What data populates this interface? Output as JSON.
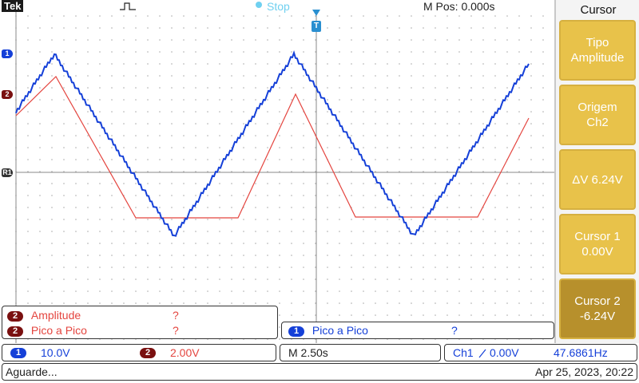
{
  "top": {
    "brand": "Tek",
    "acq_state": "Stop",
    "m_pos": "M Pos: 0.000s"
  },
  "side_menu": {
    "title": "Cursor",
    "buttons": [
      {
        "label": "Tipo\nAmplitude"
      },
      {
        "label": "Origem\nCh2"
      },
      {
        "label": "ΔV 6.24V"
      },
      {
        "label": "Cursor 1\n0.00V"
      },
      {
        "label": "Cursor 2\n-6.24V"
      }
    ]
  },
  "markers": {
    "ch1": "1",
    "ch2": "2",
    "ref": "R1",
    "trigger": "T"
  },
  "measurements": {
    "ch2_rows": [
      {
        "chip": "2",
        "name": "Amplitude",
        "value": "?"
      },
      {
        "chip": "2",
        "name": "Pico a Pico",
        "value": "?"
      }
    ],
    "ch1_rows": [
      {
        "chip": "1",
        "name": "Pico a Pico",
        "value": "?"
      }
    ]
  },
  "status": {
    "ch1_chip": "1",
    "ch1_scale": "10.0V",
    "ch2_chip": "2",
    "ch2_scale": "2.00V",
    "timebase": "M 2.50s",
    "trigger_src": "Ch1",
    "trigger_level": "0.00V",
    "frequency": "47.6861Hz",
    "message": "Aguarde...",
    "datetime": "Apr 25, 2023, 20:22"
  },
  "colors": {
    "ch1": "#1540d8",
    "ch2": "#e4453f",
    "menu_button": "#e8c24a",
    "menu_button_active": "#b7902c"
  }
}
